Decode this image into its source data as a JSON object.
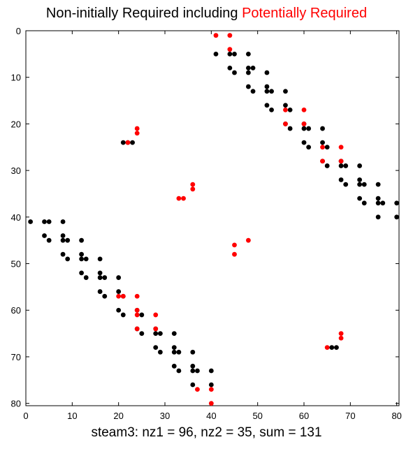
{
  "chart_data": {
    "type": "scatter",
    "title": {
      "black_part": "Non-initially Required including ",
      "red_part": "Potentially Required"
    },
    "xlabel": "steam3:  nz1 = 96, nz2 = 35, sum = 131",
    "ylabel": "",
    "xlim": [
      0,
      80.5
    ],
    "ylim": [
      80.5,
      0
    ],
    "y_reversed": true,
    "grid": false,
    "x_ticks": [
      0,
      10,
      20,
      30,
      40,
      50,
      60,
      70,
      80
    ],
    "y_ticks": [
      0,
      10,
      20,
      30,
      40,
      50,
      60,
      70,
      80
    ],
    "series": [
      {
        "color": "#000000",
        "points": [
          [
            41,
            5
          ],
          [
            44,
            5
          ],
          [
            45,
            5
          ],
          [
            48,
            5
          ],
          [
            44,
            8
          ],
          [
            45,
            9
          ],
          [
            48,
            8
          ],
          [
            49,
            8
          ],
          [
            48,
            9
          ],
          [
            52,
            9
          ],
          [
            48,
            12
          ],
          [
            49,
            13
          ],
          [
            52,
            12
          ],
          [
            52,
            13
          ],
          [
            53,
            13
          ],
          [
            56,
            13
          ],
          [
            52,
            16
          ],
          [
            53,
            17
          ],
          [
            56,
            16
          ],
          [
            57,
            17
          ],
          [
            56,
            20
          ],
          [
            57,
            21
          ],
          [
            60,
            20
          ],
          [
            60,
            21
          ],
          [
            61,
            21
          ],
          [
            64,
            21
          ],
          [
            60,
            24
          ],
          [
            61,
            25
          ],
          [
            64,
            24
          ],
          [
            65,
            25
          ],
          [
            64,
            28
          ],
          [
            65,
            29
          ],
          [
            68,
            28
          ],
          [
            68,
            29
          ],
          [
            69,
            29
          ],
          [
            72,
            29
          ],
          [
            68,
            32
          ],
          [
            69,
            33
          ],
          [
            72,
            32
          ],
          [
            72,
            33
          ],
          [
            73,
            33
          ],
          [
            76,
            33
          ],
          [
            72,
            36
          ],
          [
            73,
            37
          ],
          [
            76,
            36
          ],
          [
            76,
            37
          ],
          [
            77,
            37
          ],
          [
            80,
            37
          ],
          [
            76,
            40
          ],
          [
            80,
            40
          ],
          [
            21,
            24
          ],
          [
            22,
            24
          ],
          [
            23,
            24
          ],
          [
            1,
            41
          ],
          [
            4,
            41
          ],
          [
            5,
            41
          ],
          [
            8,
            41
          ],
          [
            4,
            44
          ],
          [
            5,
            45
          ],
          [
            8,
            44
          ],
          [
            8,
            45
          ],
          [
            9,
            45
          ],
          [
            12,
            45
          ],
          [
            8,
            48
          ],
          [
            9,
            49
          ],
          [
            12,
            48
          ],
          [
            12,
            49
          ],
          [
            13,
            49
          ],
          [
            16,
            49
          ],
          [
            12,
            52
          ],
          [
            13,
            53
          ],
          [
            16,
            52
          ],
          [
            16,
            53
          ],
          [
            17,
            53
          ],
          [
            20,
            53
          ],
          [
            16,
            56
          ],
          [
            17,
            57
          ],
          [
            20,
            56
          ],
          [
            21,
            57
          ],
          [
            20,
            60
          ],
          [
            21,
            61
          ],
          [
            24,
            60
          ],
          [
            25,
            61
          ],
          [
            24,
            64
          ],
          [
            25,
            65
          ],
          [
            28,
            64
          ],
          [
            28,
            65
          ],
          [
            29,
            65
          ],
          [
            32,
            65
          ],
          [
            28,
            68
          ],
          [
            29,
            69
          ],
          [
            32,
            68
          ],
          [
            32,
            69
          ],
          [
            33,
            69
          ],
          [
            36,
            69
          ],
          [
            32,
            72
          ],
          [
            33,
            73
          ],
          [
            36,
            72
          ],
          [
            36,
            73
          ],
          [
            37,
            73
          ],
          [
            40,
            73
          ],
          [
            36,
            76
          ],
          [
            40,
            76
          ],
          [
            66,
            68
          ],
          [
            67,
            68
          ]
        ]
      },
      {
        "color": "#ff0000",
        "points": [
          [
            41,
            1
          ],
          [
            44,
            1
          ],
          [
            44,
            4
          ],
          [
            56,
            17
          ],
          [
            60,
            17
          ],
          [
            56,
            20
          ],
          [
            60,
            20
          ],
          [
            64,
            25
          ],
          [
            68,
            25
          ],
          [
            64,
            28
          ],
          [
            68,
            28
          ],
          [
            24,
            21
          ],
          [
            24,
            22
          ],
          [
            22,
            24
          ],
          [
            36,
            33
          ],
          [
            36,
            34
          ],
          [
            33,
            36
          ],
          [
            34,
            36
          ],
          [
            45,
            46
          ],
          [
            48,
            45
          ],
          [
            45,
            48
          ],
          [
            20,
            57
          ],
          [
            24,
            57
          ],
          [
            24,
            60
          ],
          [
            24,
            61
          ],
          [
            28,
            61
          ],
          [
            24,
            64
          ],
          [
            28,
            64
          ],
          [
            68,
            65
          ],
          [
            68,
            66
          ],
          [
            65,
            68
          ],
          [
            37,
            77
          ],
          [
            40,
            77
          ],
          [
            40,
            80
          ],
          [
            21,
            57
          ]
        ]
      }
    ]
  }
}
